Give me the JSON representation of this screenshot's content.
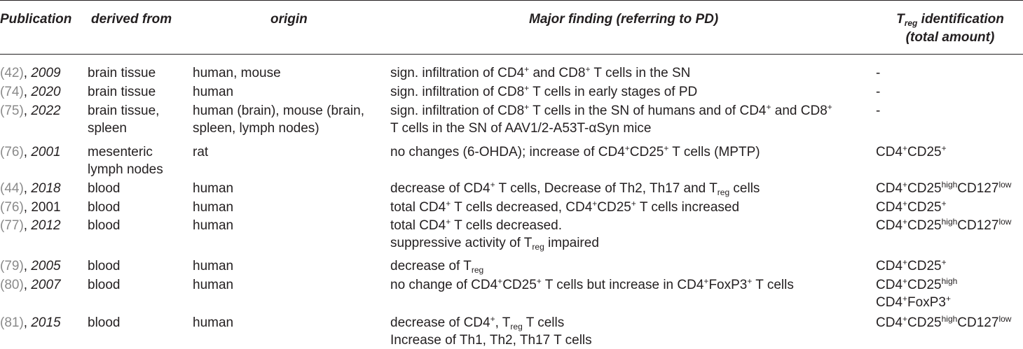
{
  "headers": {
    "publication": "Publication",
    "derived_from": "derived from",
    "origin": "origin",
    "major_finding": "Major finding (referring to PD)",
    "treg_id_T": "T",
    "treg_id_sub": "reg",
    "treg_id_rest": " identification",
    "treg_id_line2": "(total amount)"
  },
  "rows": [
    {
      "ref": "(42)",
      "sep": ", ",
      "year": "2009",
      "derived": "brain tissue",
      "origin": "human, mouse",
      "f": [
        "sign. infiltration of CD4",
        "+",
        " and CD8",
        "+",
        " T cells in the SN"
      ],
      "treg": "-"
    },
    {
      "ref": "(74)",
      "sep": ", ",
      "year": "2020",
      "derived": "brain tissue",
      "origin": "human",
      "f": [
        "sign. infiltration of CD8",
        "+",
        " T cells in early stages of PD"
      ],
      "treg": "-"
    },
    {
      "ref": "(75)",
      "sep": ", ",
      "year": "2022",
      "derived": [
        "brain tissue,",
        "spleen"
      ],
      "origin": [
        "human (brain), mouse (brain,",
        "spleen, lymph nodes)"
      ],
      "f1": [
        "sign. infiltration of CD8",
        "+",
        " T cells in the SN of humans and of CD4",
        "+",
        " and CD8",
        "+"
      ],
      "f2": "T cells in the SN of AAV1/2-A53T-αSyn mice",
      "treg": "-"
    },
    {
      "ref": "(76)",
      "sep": ", ",
      "year": "2001",
      "derived": [
        "mesenteric",
        "lymph nodes"
      ],
      "origin": "rat",
      "f": [
        "no changes (6-OHDA); increase of CD4",
        "+",
        "CD25",
        "+",
        " T cells (MPTP)"
      ],
      "treg": [
        "CD4",
        "+",
        "CD25",
        "+"
      ]
    },
    {
      "ref": "(44)",
      "sep": ", ",
      "year": "2018",
      "derived": "blood",
      "origin": "human",
      "f": [
        "decrease of CD4",
        "+",
        " T cells, Decrease of Th2, Th17 and T",
        "reg",
        " cells"
      ],
      "treg": [
        "CD4",
        "+",
        "CD25",
        "high",
        "CD127",
        "low"
      ]
    },
    {
      "ref": "(76)",
      "sep": ", ",
      "year": "2001",
      "derived": "blood",
      "origin": "human",
      "f": [
        "total CD4",
        "+",
        " T cells decreased, CD4",
        "+",
        "CD25",
        "+",
        " T cells increased"
      ],
      "treg": [
        "CD4",
        "+",
        "CD25",
        "+"
      ]
    },
    {
      "ref": "(77)",
      "sep": ", ",
      "year": "2012",
      "derived": "blood",
      "origin": "human",
      "f1": [
        "total CD4",
        "+",
        " T cells decreased."
      ],
      "f2": [
        "suppressive activity of T",
        "reg",
        " impaired"
      ],
      "treg": [
        "CD4",
        "+",
        "CD25",
        "high",
        "CD127",
        "low"
      ]
    },
    {
      "ref": "(79)",
      "sep": ", ",
      "year": "2005",
      "derived": "blood",
      "origin": "human",
      "f": [
        "decrease of T",
        "reg"
      ],
      "treg": [
        "CD4",
        "+",
        "CD25",
        "+"
      ]
    },
    {
      "ref": "(80)",
      "sep": ", ",
      "year": "2007",
      "derived": "blood",
      "origin": "human",
      "f": [
        "no change of CD4",
        "+",
        "CD25",
        "+",
        " T cells but increase in CD4",
        "+",
        "FoxP3",
        "+",
        " T cells"
      ],
      "treg1": [
        "CD4",
        "+",
        "CD25",
        "high"
      ],
      "treg2": [
        "CD4",
        "+",
        "FoxP3",
        "+"
      ]
    },
    {
      "ref": "(81)",
      "sep": ", ",
      "year": "2015",
      "derived": "blood",
      "origin": "human",
      "f1": [
        "decrease of CD4",
        "+",
        ", T",
        "reg",
        " T cells"
      ],
      "f2": "Increase of Th1, Th2, Th17 T cells",
      "treg": [
        "CD4",
        "+",
        "CD25",
        "high",
        "CD127",
        "low"
      ]
    }
  ]
}
